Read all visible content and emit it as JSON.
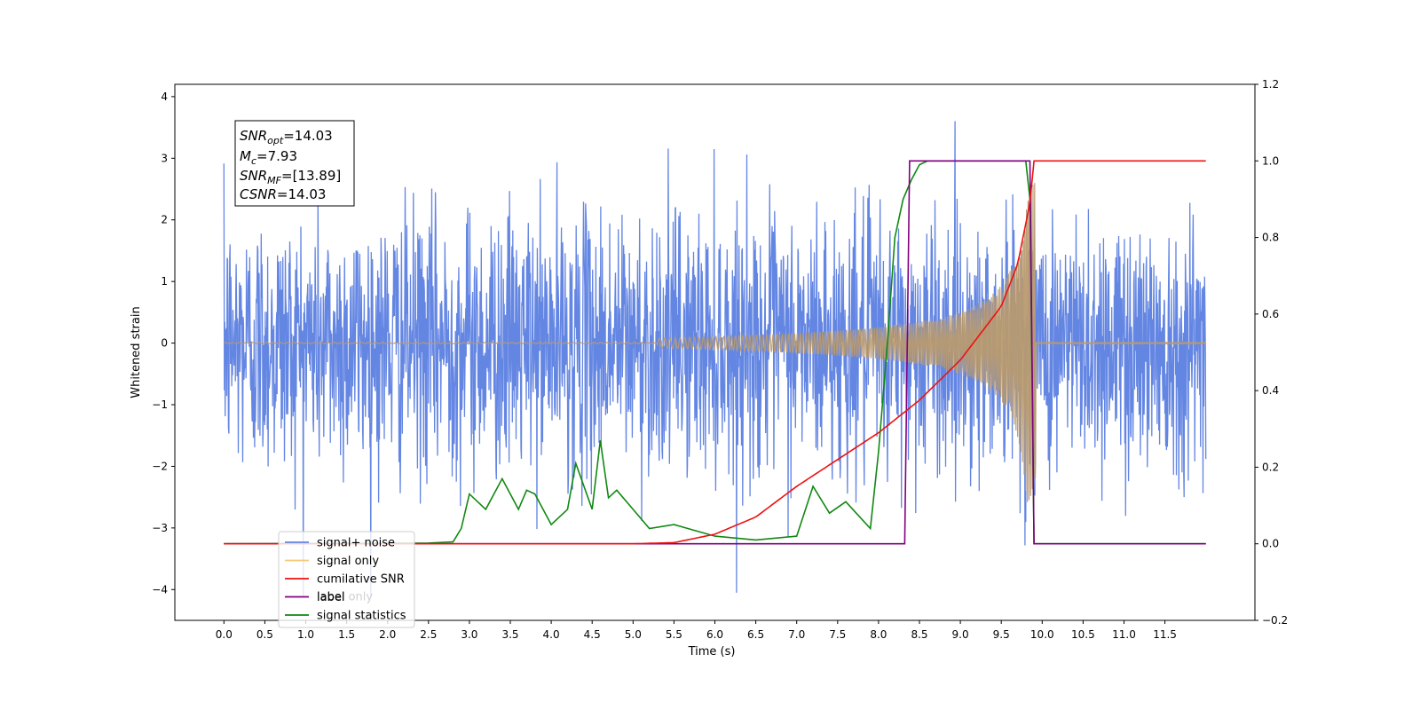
{
  "chart_data": {
    "type": "line",
    "xlabel": "Time (s)",
    "ylabel": "Whitened strain",
    "xlim": [
      -0.6,
      12.6
    ],
    "ylim_left": [
      -4.5,
      4.2
    ],
    "ylim_right": [
      -0.2,
      1.2
    ],
    "x_ticks": [
      "0.0",
      "0.5",
      "1.0",
      "1.5",
      "2.0",
      "2.5",
      "3.0",
      "3.5",
      "4.0",
      "4.5",
      "5.0",
      "5.5",
      "6.0",
      "6.5",
      "7.0",
      "7.5",
      "8.0",
      "8.5",
      "9.0",
      "9.5",
      "10.0",
      "10.5",
      "11.0",
      "11.5"
    ],
    "y_ticks_left": [
      "−4",
      "−3",
      "−2",
      "−1",
      "0",
      "1",
      "2",
      "3",
      "4"
    ],
    "y_ticks_right": [
      "−0.2",
      "0.0",
      "0.2",
      "0.4",
      "0.6",
      "0.8",
      "1.0",
      "1.2"
    ],
    "grid": false,
    "legend_position": "lower-left",
    "annotation": {
      "snr_opt": {
        "sym": "SNR",
        "sub": "opt",
        "value": "=14.03"
      },
      "mc": {
        "sym": "M",
        "sub": "c",
        "value": "=7.93"
      },
      "snr_mf": {
        "sym": "SNR",
        "sub": "MF",
        "value": "=[13.89]"
      },
      "csnr": {
        "sym": "CSNR",
        "sub": "",
        "value": "=14.03"
      }
    },
    "series": [
      {
        "name": "signal+ noise",
        "color": "#6486e3",
        "axis": "left",
        "description": "noise time series, approx std 1.0, range about −4.1 to 3.8, x from 0 to 12"
      },
      {
        "name": "signal only",
        "color": "#f5b65a",
        "axis": "left",
        "description": "chirp with envelope growing from ~0 at 5.5 s to ~±2.5 at 9.85 s, then ~0"
      },
      {
        "name": "cumilative SNR",
        "color": "#ee1111",
        "axis": "right",
        "x": [
          0,
          5.0,
          5.5,
          6.0,
          6.5,
          7.0,
          7.5,
          8.0,
          8.5,
          9.0,
          9.5,
          9.7,
          9.85,
          9.9,
          12.0
        ],
        "values": [
          0,
          0,
          0.003,
          0.025,
          0.07,
          0.15,
          0.22,
          0.29,
          0.375,
          0.48,
          0.62,
          0.73,
          0.89,
          1.0,
          1.0
        ]
      },
      {
        "name": "label",
        "color": "#800080",
        "axis": "right",
        "x": [
          0,
          8.32,
          8.38,
          9.85,
          9.9,
          12.0
        ],
        "values": [
          0,
          0,
          1.0,
          1.0,
          0,
          0
        ]
      },
      {
        "name": "signal statistics",
        "color": "#118811",
        "axis": "right",
        "x": [
          0,
          2.5,
          2.8,
          2.9,
          3.0,
          3.2,
          3.4,
          3.6,
          3.7,
          3.8,
          4.0,
          4.2,
          4.3,
          4.5,
          4.6,
          4.7,
          4.8,
          5.0,
          5.2,
          5.5,
          6.0,
          6.5,
          7.0,
          7.2,
          7.4,
          7.6,
          7.9,
          8.0,
          8.1,
          8.2,
          8.3,
          8.4,
          8.5,
          8.6,
          8.8,
          9.8,
          9.85,
          9.9,
          12.0
        ],
        "values": [
          0,
          0.002,
          0.005,
          0.04,
          0.13,
          0.09,
          0.17,
          0.09,
          0.14,
          0.13,
          0.05,
          0.09,
          0.21,
          0.09,
          0.27,
          0.12,
          0.14,
          0.09,
          0.04,
          0.05,
          0.02,
          0.01,
          0.02,
          0.15,
          0.08,
          0.11,
          0.04,
          0.24,
          0.5,
          0.8,
          0.9,
          0.95,
          0.99,
          1.0,
          1.0,
          1.0,
          0.9,
          0.0,
          0.0
        ]
      },
      {
        "name": "label only",
        "color": "#cccccc",
        "axis": "right",
        "description": "legend entry only (no visible data)"
      }
    ]
  }
}
